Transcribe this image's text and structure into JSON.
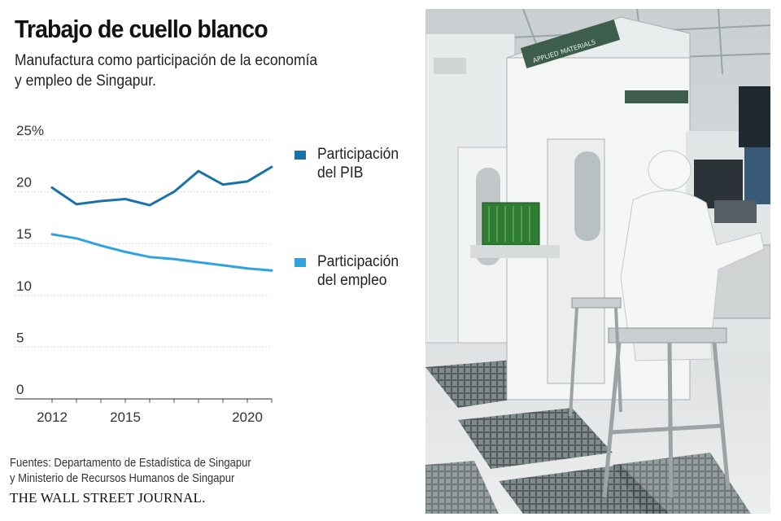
{
  "header": {
    "title": "Trabajo de cuello blanco",
    "subtitle_lines": [
      "Manufactura como participación de la economía",
      "y empleo de Singapur."
    ]
  },
  "chart_data": {
    "type": "line",
    "x": [
      2012,
      2013,
      2014,
      2015,
      2016,
      2017,
      2018,
      2019,
      2020,
      2021
    ],
    "series": [
      {
        "name": "Participación del PIB",
        "label_lines": [
          "Participación",
          "del PIB"
        ],
        "color": "#1a73a8",
        "values": [
          20.4,
          18.8,
          19.1,
          19.3,
          18.7,
          20.0,
          22.0,
          20.7,
          21.0,
          22.4
        ]
      },
      {
        "name": "Participación del empleo",
        "label_lines": [
          "Participación",
          "del empleo"
        ],
        "color": "#2fa3df",
        "values": [
          15.9,
          15.5,
          14.8,
          14.2,
          13.7,
          13.5,
          13.2,
          12.9,
          12.6,
          12.4
        ]
      }
    ],
    "ylim": [
      0,
      25
    ],
    "y_ticks": [
      0,
      5,
      10,
      15,
      20,
      25
    ],
    "y_tick_labels": [
      "0",
      "5",
      "10",
      "15",
      "20",
      "25%"
    ],
    "x_ticks": [
      2012,
      2015,
      2020
    ],
    "x_tick_labels": [
      "2012",
      "2015",
      "2020"
    ],
    "grid": true,
    "legend_position": "right"
  },
  "footer": {
    "source_lines": [
      "Fuentes: Departamento de Estadística de Singapur",
      "y Ministerio de Recursos Humanos de Singapur"
    ],
    "publisher": "THE WALL STREET JOURNAL."
  },
  "photo": {
    "icon": "cleanroom-photo-icon",
    "machine_brand": "APPLIED MATERIALS"
  }
}
